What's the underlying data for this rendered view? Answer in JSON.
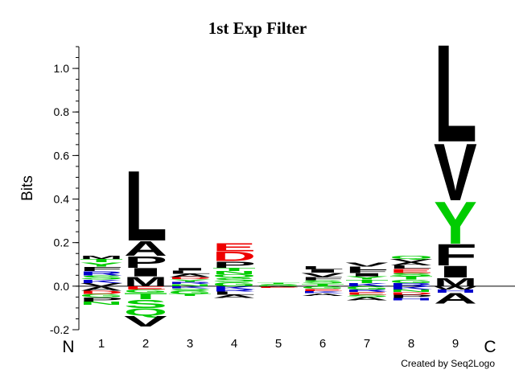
{
  "chart_data": {
    "type": "sequence-logo",
    "title": "1st Exp Filter",
    "ylabel": "Bits",
    "ylim": [
      -0.2,
      1.1
    ],
    "yticks": [
      "-0.2",
      "0.0",
      "0.2",
      "0.4",
      "0.6",
      "0.8",
      "1.0"
    ],
    "n_terminal_label": "N",
    "c_terminal_label": "C",
    "positions": [
      "1",
      "2",
      "3",
      "4",
      "5",
      "6",
      "7",
      "8",
      "9"
    ],
    "credit": "Created by Seq2Logo",
    "colors": {
      "hydrophobic": "#000000",
      "polar": "#00cc00",
      "acidic": "#ee0000",
      "basic": "#0000cc",
      "other": "#ff00ff"
    },
    "stacks": [
      {
        "pos": "1",
        "up": [
          [
            "V",
            0.015,
            "#000000"
          ],
          [
            "K",
            0.015,
            "#0000cc"
          ],
          [
            "S",
            0.02,
            "#00cc00"
          ],
          [
            "R",
            0.02,
            "#0000cc"
          ],
          [
            "F",
            0.02,
            "#000000"
          ],
          [
            "Y",
            0.02,
            "#00cc00"
          ],
          [
            "T",
            0.015,
            "#00cc00"
          ],
          [
            "M",
            0.015,
            "#000000"
          ]
        ],
        "down": [
          [
            "A",
            0.02,
            "#000000"
          ],
          [
            "D",
            0.015,
            "#ee0000"
          ],
          [
            "G",
            0.015,
            "#00cc00"
          ],
          [
            "P",
            0.02,
            "#000000"
          ],
          [
            "N",
            0.015,
            "#00cc00"
          ]
        ]
      },
      {
        "pos": "2",
        "up": [
          [
            "M",
            0.045,
            "#000000"
          ],
          [
            "I",
            0.04,
            "#000000"
          ],
          [
            "P",
            0.055,
            "#000000"
          ],
          [
            "A",
            0.07,
            "#000000"
          ],
          [
            "L",
            0.33,
            "#000000"
          ]
        ],
        "down": [
          [
            "E",
            0.015,
            "#ee0000"
          ],
          [
            "G",
            0.015,
            "#00cc00"
          ],
          [
            "T",
            0.03,
            "#00cc00"
          ],
          [
            "S",
            0.04,
            "#00cc00"
          ],
          [
            "Q",
            0.035,
            "#00cc00"
          ],
          [
            "V",
            0.05,
            "#000000"
          ]
        ]
      },
      {
        "pos": "3",
        "up": [
          [
            "N",
            0.01,
            "#00cc00"
          ],
          [
            "R",
            0.01,
            "#0000cc"
          ],
          [
            "Y",
            0.012,
            "#00cc00"
          ],
          [
            "D",
            0.01,
            "#ee0000"
          ],
          [
            "A",
            0.015,
            "#000000"
          ],
          [
            "L",
            0.015,
            "#000000"
          ],
          [
            "I",
            0.012,
            "#000000"
          ]
        ],
        "down": [
          [
            "K",
            0.01,
            "#0000cc"
          ],
          [
            "S",
            0.01,
            "#00cc00"
          ],
          [
            "G",
            0.015,
            "#00cc00"
          ],
          [
            "T",
            0.01,
            "#00cc00"
          ]
        ]
      },
      {
        "pos": "4",
        "up": [
          [
            "G",
            0.02,
            "#00cc00"
          ],
          [
            "S",
            0.02,
            "#00cc00"
          ],
          [
            "Q",
            0.015,
            "#00cc00"
          ],
          [
            "N",
            0.015,
            "#00cc00"
          ],
          [
            "T",
            0.015,
            "#00cc00"
          ],
          [
            "P",
            0.03,
            "#000000"
          ],
          [
            "D",
            0.045,
            "#ee0000"
          ],
          [
            "E",
            0.04,
            "#ee0000"
          ]
        ],
        "down": [
          [
            "K",
            0.015,
            "#0000cc"
          ],
          [
            "R",
            0.01,
            "#0000cc"
          ],
          [
            "L",
            0.015,
            "#000000"
          ],
          [
            "A",
            0.015,
            "#000000"
          ]
        ]
      },
      {
        "pos": "5",
        "up": [
          [
            "G",
            0.005,
            "#00cc00"
          ],
          [
            "S",
            0.005,
            "#00cc00"
          ],
          [
            "T",
            0.004,
            "#00cc00"
          ]
        ],
        "down": [
          [
            "A",
            0.004,
            "#000000"
          ],
          [
            "E",
            0.004,
            "#ee0000"
          ]
        ]
      },
      {
        "pos": "6",
        "up": [
          [
            "T",
            0.012,
            "#00cc00"
          ],
          [
            "S",
            0.015,
            "#00cc00"
          ],
          [
            "F",
            0.015,
            "#000000"
          ],
          [
            "V",
            0.02,
            "#000000"
          ],
          [
            "I",
            0.015,
            "#000000"
          ],
          [
            "L",
            0.015,
            "#000000"
          ]
        ],
        "down": [
          [
            "G",
            0.012,
            "#00cc00"
          ],
          [
            "E",
            0.01,
            "#ee0000"
          ],
          [
            "K",
            0.01,
            "#0000cc"
          ],
          [
            "A",
            0.012,
            "#000000"
          ]
        ]
      },
      {
        "pos": "7",
        "up": [
          [
            "K",
            0.015,
            "#0000cc"
          ],
          [
            "T",
            0.015,
            "#00cc00"
          ],
          [
            "Y",
            0.015,
            "#00cc00"
          ],
          [
            "I",
            0.015,
            "#000000"
          ],
          [
            "F",
            0.015,
            "#000000"
          ],
          [
            "L",
            0.015,
            "#000000"
          ],
          [
            "V",
            0.02,
            "#000000"
          ]
        ],
        "down": [
          [
            "G",
            0.015,
            "#00cc00"
          ],
          [
            "R",
            0.012,
            "#0000cc"
          ],
          [
            "E",
            0.012,
            "#ee0000"
          ],
          [
            "S",
            0.012,
            "#00cc00"
          ],
          [
            "A",
            0.015,
            "#000000"
          ]
        ]
      },
      {
        "pos": "8",
        "up": [
          [
            "R",
            0.015,
            "#0000cc"
          ],
          [
            "G",
            0.015,
            "#00cc00"
          ],
          [
            "T",
            0.015,
            "#00cc00"
          ],
          [
            "S",
            0.015,
            "#00cc00"
          ],
          [
            "E",
            0.02,
            "#ee0000"
          ],
          [
            "L",
            0.015,
            "#000000"
          ],
          [
            "A",
            0.015,
            "#000000"
          ],
          [
            "V",
            0.015,
            "#000000"
          ],
          [
            "Q",
            0.015,
            "#00cc00"
          ]
        ],
        "down": [
          [
            "K",
            0.015,
            "#0000cc"
          ],
          [
            "N",
            0.012,
            "#00cc00"
          ],
          [
            "D",
            0.012,
            "#ee0000"
          ],
          [
            "P",
            0.015,
            "#000000"
          ],
          [
            "H",
            0.012,
            "#0000cc"
          ]
        ]
      },
      {
        "pos": "9",
        "up": [
          [
            "M",
            0.04,
            "#000000"
          ],
          [
            "I",
            0.055,
            "#000000"
          ],
          [
            "F",
            0.1,
            "#000000"
          ],
          [
            "Y",
            0.2,
            "#00cc00"
          ],
          [
            "V",
            0.27,
            "#000000"
          ],
          [
            "L",
            0.46,
            "#000000"
          ]
        ],
        "down": [
          [
            "W",
            0.015,
            "#000000"
          ],
          [
            "H",
            0.015,
            "#0000cc"
          ],
          [
            "A",
            0.05,
            "#000000"
          ]
        ]
      }
    ]
  }
}
